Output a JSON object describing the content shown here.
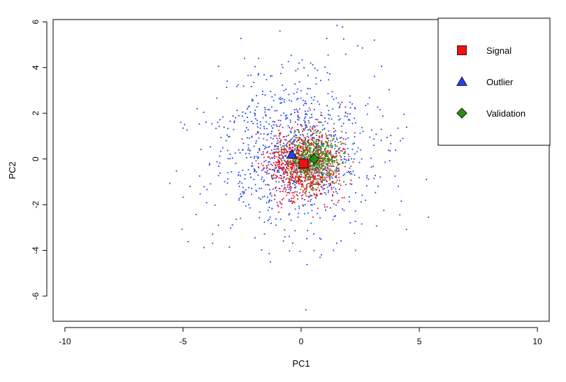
{
  "chart_data": {
    "type": "scatter",
    "title": "",
    "xlabel": "PC1",
    "ylabel": "PC2",
    "xlim": [
      -10.5,
      10.5
    ],
    "ylim": [
      -7.1,
      6.1
    ],
    "xticks": [
      -10,
      -5,
      0,
      5,
      10
    ],
    "yticks": [
      -6,
      -4,
      -2,
      0,
      2,
      4,
      6
    ],
    "x_tick_labels": [
      "-10",
      "-5",
      "0",
      "5",
      "10"
    ],
    "y_tick_labels": [
      "-6",
      "-4",
      "-2",
      "0",
      "2",
      "4",
      "6"
    ],
    "grid": false,
    "legend_position": "top-right",
    "series": [
      {
        "name": "Signal",
        "color": "#ee1111",
        "marker": "square",
        "centroid": [
          0.1,
          -0.2
        ],
        "spread": [
          0.75,
          0.75
        ],
        "count": 900,
        "seed": 11
      },
      {
        "name": "Outlier",
        "color": "#2244ee",
        "marker": "triangle",
        "centroid": [
          -0.4,
          0.2
        ],
        "spread": [
          1.7,
          1.7
        ],
        "count": 1000,
        "seed": 23,
        "extra_points": [
          [
            -0.9,
            5.6
          ],
          [
            1.8,
            5.25
          ],
          [
            3.1,
            5.2
          ],
          [
            2.4,
            4.95
          ],
          [
            3.4,
            4.05
          ],
          [
            -2.4,
            4.4
          ],
          [
            -1.8,
            4.4
          ],
          [
            -5.1,
            1.6
          ],
          [
            -5.0,
            1.35
          ],
          [
            -4.4,
            2.2
          ],
          [
            -4.7,
            -1.2
          ],
          [
            5.3,
            -0.9
          ],
          [
            4.3,
            0.9
          ],
          [
            4.2,
            0.8
          ],
          [
            3.5,
            -2.25
          ],
          [
            0.2,
            -6.6
          ],
          [
            0.8,
            -4.3
          ],
          [
            2.3,
            -4.0
          ],
          [
            -3.5,
            -2.9
          ]
        ]
      },
      {
        "name": "Validation",
        "color": "#2e8b12",
        "marker": "diamond",
        "centroid": [
          0.55,
          0.0
        ],
        "spread": [
          0.55,
          0.55
        ],
        "count": 500,
        "seed": 37
      }
    ],
    "legend": [
      {
        "label": "Signal",
        "marker": "square",
        "color": "#ee1111"
      },
      {
        "label": "Outlier",
        "marker": "triangle",
        "color": "#2244ee"
      },
      {
        "label": "Validation",
        "marker": "diamond",
        "color": "#2e8b12"
      }
    ]
  }
}
